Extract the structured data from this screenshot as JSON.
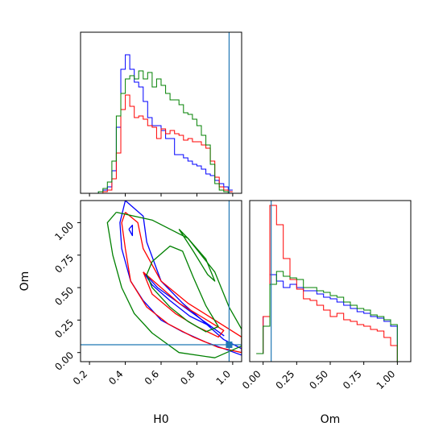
{
  "chart_data": [
    {
      "type": "histogram",
      "panel": "H0 marginal",
      "x": {
        "bins": [
          0.2,
          0.225,
          0.25,
          0.275,
          0.3,
          0.325,
          0.35,
          0.375,
          0.4,
          0.425,
          0.45,
          0.475,
          0.5,
          0.525,
          0.55,
          0.575,
          0.6,
          0.625,
          0.65,
          0.675,
          0.7,
          0.725,
          0.75,
          0.775,
          0.8,
          0.825,
          0.85,
          0.875,
          0.9,
          0.925,
          0.95,
          0.975,
          1.0,
          1.025,
          1.05
        ]
      },
      "xlim": [
        0.15,
        1.05
      ],
      "truth": 0.98,
      "series": [
        {
          "color": "#0000ff",
          "values": [
            0,
            0,
            0.01,
            0.02,
            0.04,
            0.14,
            0.41,
            0.77,
            0.86,
            0.77,
            0.69,
            0.66,
            0.57,
            0.47,
            0.42,
            0.42,
            0.39,
            0.34,
            0.34,
            0.24,
            0.24,
            0.22,
            0.2,
            0.18,
            0.17,
            0.15,
            0.12,
            0.11,
            0.08,
            0.06,
            0.04,
            0.02
          ]
        },
        {
          "color": "#ff0000",
          "values": [
            0,
            0,
            0,
            0.01,
            0.02,
            0.09,
            0.25,
            0.52,
            0.61,
            0.54,
            0.47,
            0.48,
            0.46,
            0.42,
            0.41,
            0.34,
            0.4,
            0.37,
            0.39,
            0.37,
            0.36,
            0.33,
            0.34,
            0.32,
            0.32,
            0.3,
            0.28,
            0.2,
            0.1,
            0.04,
            0.02,
            0.01
          ]
        },
        {
          "color": "#008000",
          "values": [
            0,
            0,
            0.01,
            0.03,
            0.07,
            0.2,
            0.48,
            0.62,
            0.71,
            0.73,
            0.71,
            0.76,
            0.71,
            0.75,
            0.66,
            0.71,
            0.67,
            0.62,
            0.58,
            0.58,
            0.55,
            0.5,
            0.49,
            0.46,
            0.42,
            0.36,
            0.3,
            0.18,
            0.06,
            0.02,
            0.01,
            0
          ]
        }
      ],
      "ylim": [
        0,
        1.0
      ]
    },
    {
      "type": "contour",
      "panel": "H0 vs Om joint",
      "xlabel": "H0",
      "ylabel": "Om",
      "xlim": [
        0.15,
        1.05
      ],
      "ylim": [
        -0.07,
        1.17
      ],
      "xticks": [
        0.2,
        0.4,
        0.6,
        0.8,
        1.0
      ],
      "yticks": [
        0.0,
        0.25,
        0.5,
        0.75,
        1.0
      ],
      "truth": {
        "x": 0.98,
        "y": 0.06
      },
      "series": [
        {
          "color": "#0000ff",
          "contours": [
            [
              [
                0.4,
                1.17
              ],
              [
                0.5,
                1.05
              ],
              [
                0.52,
                0.85
              ],
              [
                0.6,
                0.55
              ],
              [
                0.72,
                0.38
              ],
              [
                0.82,
                0.26
              ],
              [
                0.95,
                0.1
              ],
              [
                1.05,
                0.03
              ],
              [
                1.05,
                -0.02
              ],
              [
                0.85,
                0.08
              ],
              [
                0.72,
                0.16
              ],
              [
                0.6,
                0.25
              ],
              [
                0.5,
                0.4
              ],
              [
                0.43,
                0.55
              ],
              [
                0.38,
                0.8
              ],
              [
                0.37,
                1.0
              ],
              [
                0.4,
                1.17
              ]
            ],
            [
              [
                0.5,
                0.62
              ],
              [
                0.58,
                0.5
              ],
              [
                0.7,
                0.38
              ],
              [
                0.8,
                0.28
              ],
              [
                0.9,
                0.18
              ],
              [
                0.95,
                0.13
              ],
              [
                0.88,
                0.2
              ],
              [
                0.76,
                0.28
              ],
              [
                0.65,
                0.4
              ],
              [
                0.55,
                0.52
              ],
              [
                0.5,
                0.62
              ]
            ],
            [
              [
                0.42,
                0.95
              ],
              [
                0.44,
                0.98
              ],
              [
                0.44,
                0.9
              ],
              [
                0.42,
                0.95
              ]
            ]
          ]
        },
        {
          "color": "#ff0000",
          "contours": [
            [
              [
                0.4,
                1.08
              ],
              [
                0.47,
                1.0
              ],
              [
                0.5,
                0.8
              ],
              [
                0.6,
                0.55
              ],
              [
                0.75,
                0.38
              ],
              [
                0.9,
                0.25
              ],
              [
                1.05,
                0.12
              ],
              [
                1.05,
                0.0
              ],
              [
                0.92,
                0.04
              ],
              [
                0.78,
                0.12
              ],
              [
                0.64,
                0.22
              ],
              [
                0.52,
                0.35
              ],
              [
                0.43,
                0.55
              ],
              [
                0.4,
                0.8
              ],
              [
                0.38,
                1.0
              ],
              [
                0.4,
                1.08
              ]
            ],
            [
              [
                0.5,
                0.62
              ],
              [
                0.6,
                0.5
              ],
              [
                0.7,
                0.38
              ],
              [
                0.82,
                0.28
              ],
              [
                0.95,
                0.17
              ],
              [
                0.92,
                0.12
              ],
              [
                0.8,
                0.2
              ],
              [
                0.68,
                0.3
              ],
              [
                0.55,
                0.45
              ],
              [
                0.5,
                0.62
              ]
            ]
          ]
        },
        {
          "color": "#008000",
          "contours": [
            [
              [
                0.35,
                1.08
              ],
              [
                0.55,
                1.02
              ],
              [
                0.75,
                0.88
              ],
              [
                0.9,
                0.62
              ],
              [
                0.98,
                0.35
              ],
              [
                1.05,
                0.18
              ],
              [
                1.05,
                0.05
              ],
              [
                0.9,
                -0.04
              ],
              [
                0.7,
                0.0
              ],
              [
                0.55,
                0.15
              ],
              [
                0.45,
                0.3
              ],
              [
                0.38,
                0.5
              ],
              [
                0.33,
                0.75
              ],
              [
                0.3,
                1.0
              ],
              [
                0.35,
                1.08
              ]
            ],
            [
              [
                0.55,
                0.7
              ],
              [
                0.65,
                0.82
              ],
              [
                0.72,
                0.78
              ],
              [
                0.78,
                0.58
              ],
              [
                0.85,
                0.36
              ],
              [
                0.92,
                0.2
              ],
              [
                0.85,
                0.16
              ],
              [
                0.75,
                0.24
              ],
              [
                0.65,
                0.35
              ],
              [
                0.55,
                0.5
              ],
              [
                0.52,
                0.6
              ],
              [
                0.55,
                0.7
              ]
            ],
            [
              [
                0.7,
                0.95
              ],
              [
                0.75,
                0.88
              ],
              [
                0.85,
                0.72
              ],
              [
                0.9,
                0.55
              ],
              [
                0.86,
                0.6
              ],
              [
                0.78,
                0.78
              ],
              [
                0.7,
                0.95
              ]
            ]
          ]
        }
      ]
    },
    {
      "type": "histogram",
      "panel": "Om marginal",
      "xlabel": "Om",
      "x": {
        "bins": [
          -0.05,
          -0.0,
          0.05,
          0.1,
          0.15,
          0.2,
          0.25,
          0.3,
          0.35,
          0.4,
          0.45,
          0.5,
          0.55,
          0.6,
          0.65,
          0.7,
          0.75,
          0.8,
          0.85,
          0.9,
          0.95,
          1.0,
          1.05
        ]
      },
      "xlim": [
        -0.1,
        1.1
      ],
      "xticks": [
        0.0,
        0.25,
        0.5,
        0.75,
        1.0
      ],
      "truth": 0.06,
      "series": [
        {
          "color": "#0000ff",
          "values": [
            0.05,
            0.28,
            0.54,
            0.5,
            0.46,
            0.48,
            0.46,
            0.44,
            0.44,
            0.42,
            0.4,
            0.39,
            0.37,
            0.35,
            0.33,
            0.31,
            0.3,
            0.28,
            0.27,
            0.25,
            0.22,
            0.0
          ]
        },
        {
          "color": "#ff0000",
          "values": [
            0.05,
            0.28,
            0.97,
            0.85,
            0.64,
            0.51,
            0.45,
            0.39,
            0.38,
            0.35,
            0.32,
            0.28,
            0.3,
            0.26,
            0.25,
            0.23,
            0.22,
            0.2,
            0.19,
            0.15,
            0.1,
            0.0
          ]
        },
        {
          "color": "#008000",
          "values": [
            0.05,
            0.22,
            0.48,
            0.56,
            0.53,
            0.52,
            0.51,
            0.46,
            0.46,
            0.44,
            0.43,
            0.41,
            0.4,
            0.37,
            0.35,
            0.33,
            0.32,
            0.29,
            0.28,
            0.26,
            0.23,
            0.0
          ]
        }
      ],
      "ylim": [
        0,
        1.0
      ]
    }
  ]
}
